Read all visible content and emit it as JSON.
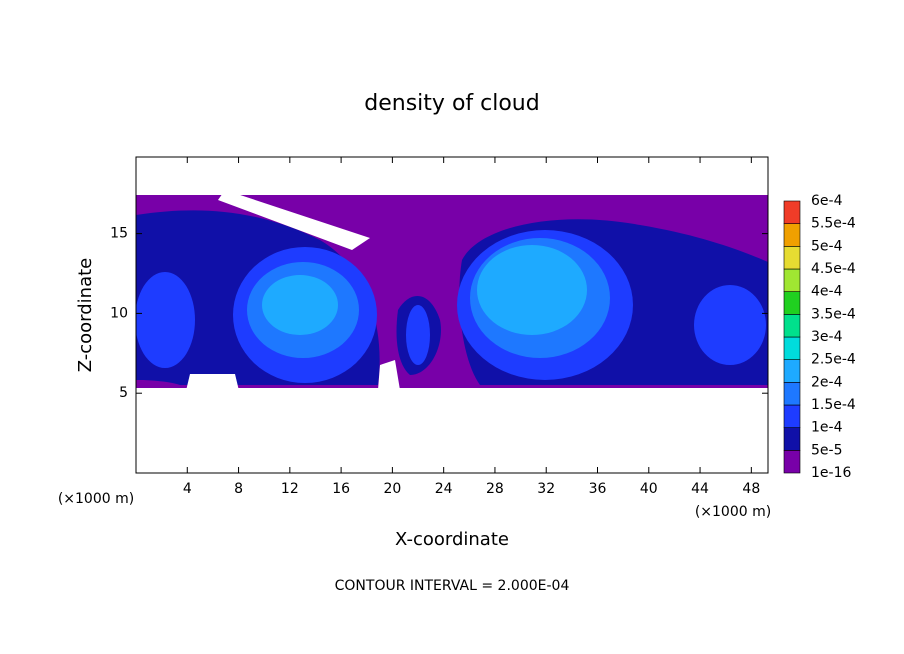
{
  "chart_data": {
    "type": "contour",
    "title": "density of cloud",
    "x_label": "X-coordinate",
    "y_label": "Z-coordinate",
    "x_unit": "(×1000 m)",
    "y_unit": "(×1000 m)",
    "footer": "CONTOUR INTERVAL = 2.000E-04",
    "xlim": [
      0,
      49.3
    ],
    "ylim": [
      0,
      19.8
    ],
    "xticks": [
      4,
      8,
      12,
      16,
      20,
      24,
      28,
      32,
      36,
      40,
      44,
      48
    ],
    "yticks": [
      5,
      10,
      15
    ],
    "colorbar": {
      "levels": [
        {
          "value": 1e-16,
          "label": "1e-16"
        },
        {
          "value": 5e-05,
          "label": "5e-5"
        },
        {
          "value": 0.0001,
          "label": "1e-4"
        },
        {
          "value": 0.00015,
          "label": "1.5e-4"
        },
        {
          "value": 0.0002,
          "label": "2e-4"
        },
        {
          "value": 0.00025,
          "label": "2.5e-4"
        },
        {
          "value": 0.0003,
          "label": "3e-4"
        },
        {
          "value": 0.00035,
          "label": "3.5e-4"
        },
        {
          "value": 0.0004,
          "label": "4e-4"
        },
        {
          "value": 0.00045,
          "label": "4.5e-4"
        },
        {
          "value": 0.0005,
          "label": "5e-4"
        },
        {
          "value": 0.00055,
          "label": "5.5e-4"
        },
        {
          "value": 0.0006,
          "label": "6e-4"
        }
      ],
      "colors": [
        "#7800a8",
        "#1010a8",
        "#1e3cff",
        "#1e78ff",
        "#1eaaff",
        "#00dcdc",
        "#00e08c",
        "#20d020",
        "#a0e632",
        "#e6dc32",
        "#f0a000",
        "#f03c28",
        "#f08080"
      ]
    }
  }
}
